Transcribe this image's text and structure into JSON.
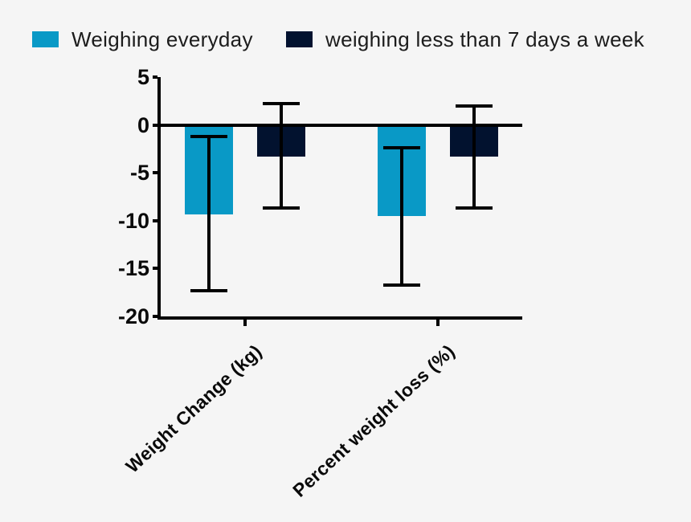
{
  "page": {
    "background": "#f5f5f5"
  },
  "chart_data": {
    "type": "bar",
    "title": "",
    "xlabel": "",
    "ylabel": "",
    "categories": [
      "Weight Change (kg)",
      "Percent weight loss (%)"
    ],
    "series": [
      {
        "name": "Weighing everyday",
        "color": "#0999c6",
        "values": [
          -9.3,
          -9.5
        ],
        "error_top": [
          -1.2,
          -2.4
        ],
        "error_bottom": [
          -17.3,
          -16.7
        ]
      },
      {
        "name": "weighing less than 7 days a week",
        "color": "#02122f",
        "values": [
          -3.3,
          -3.3
        ],
        "error_top": [
          2.2,
          2.0
        ],
        "error_bottom": [
          -8.7,
          -8.7
        ]
      }
    ],
    "ylim": [
      -20,
      5
    ],
    "yticks": [
      5,
      0,
      -5,
      -10,
      -15,
      -20
    ],
    "baseline": 0,
    "grid": false,
    "error_bars": true,
    "legend_position": "top"
  },
  "colors": {
    "axis": "#000000",
    "text": "#0a0a0a",
    "legend_text": "#1c1c1c",
    "background": "#f5f5f5"
  }
}
